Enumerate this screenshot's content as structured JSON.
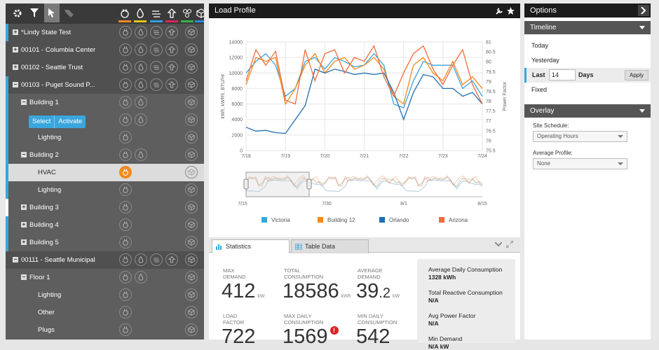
{
  "sidebar": {
    "toolbar_icons": [
      "gear-icon",
      "filter-icon",
      "pointer-icon",
      "tag-icon"
    ],
    "category_icons": [
      {
        "name": "electric-plug-icon",
        "color": "#f08a1e"
      },
      {
        "name": "gas-flame-icon",
        "color": "#e0c419"
      },
      {
        "name": "water-icon",
        "color": "#2ba0de"
      },
      {
        "name": "steam-icon",
        "color": "#d6265a"
      },
      {
        "name": "chilled-water-icon",
        "color": "#35b04a"
      },
      {
        "name": "cube-icon",
        "color": "#2a88d8"
      }
    ],
    "popup": {
      "select": "Select",
      "activate": "Activate"
    },
    "tree": [
      {
        "label": "*Lindy State Test",
        "level": 0,
        "expander": "+",
        "type": "site",
        "marker": "#3aa6dd"
      },
      {
        "label": "00101 - Columbia Center",
        "level": 0,
        "expander": "+",
        "type": "site"
      },
      {
        "label": "00102 - Seattle Trust",
        "level": 0,
        "expander": "+",
        "type": "site"
      },
      {
        "label": "00103 - Puget Sound P...",
        "level": 0,
        "expander": "−",
        "type": "site",
        "marker": "#3aa6dd"
      },
      {
        "label": "Building 1",
        "level": 1,
        "expander": "−",
        "type": "building",
        "marker": "#3aa6dd"
      },
      {
        "label": "",
        "level": 2,
        "expander": "",
        "type": "building",
        "marker": "#3aa6dd"
      },
      {
        "label": "Lighting",
        "level": 2,
        "expander": "",
        "type": "building",
        "marker": "#3aa6dd"
      },
      {
        "label": "Building 2",
        "level": 1,
        "expander": "−",
        "type": "building",
        "marker": "#3aa6dd"
      },
      {
        "label": "HVAC",
        "level": 2,
        "expander": "",
        "type": "selected",
        "marker": "#3aa6dd"
      },
      {
        "label": "Lighting",
        "level": 2,
        "expander": "",
        "type": "building",
        "marker": "#3aa6dd"
      },
      {
        "label": "Building 3",
        "level": 1,
        "expander": "+",
        "type": "building",
        "marker": "#ffffff"
      },
      {
        "label": "Building 4",
        "level": 1,
        "expander": "+",
        "type": "building",
        "marker": "#3aa6dd"
      },
      {
        "label": "Building 5",
        "level": 1,
        "expander": "+",
        "type": "building",
        "marker": "#3aa6dd"
      },
      {
        "label": "00111 - Seattle Municipal",
        "level": 0,
        "expander": "−",
        "type": "site"
      },
      {
        "label": "Floor 1",
        "level": 1,
        "expander": "−",
        "type": "building"
      },
      {
        "label": "Lighting",
        "level": 2,
        "expander": "",
        "type": "building"
      },
      {
        "label": "Other",
        "level": 2,
        "expander": "",
        "type": "building"
      },
      {
        "label": "Plugs",
        "level": 2,
        "expander": "",
        "type": "building"
      }
    ]
  },
  "load_profile": {
    "title": "Load Profile",
    "tabs": {
      "statistics": "Statistics",
      "table": "Table Data"
    },
    "stats": [
      {
        "label1": "MAX",
        "label2": "DEMAND",
        "value": "412",
        "unit": "kW"
      },
      {
        "label1": "TOTAL",
        "label2": "CONSUMPTION",
        "value": "18586",
        "unit": "kWh"
      },
      {
        "label1": "AVERAGE",
        "label2": "DEMAND",
        "value": "39",
        "decimal": ".2",
        "unit": "kW"
      },
      {
        "label1": "LOAD",
        "label2": "FACTOR",
        "value": "722"
      },
      {
        "label1": "MAX DAILY",
        "label2": "CONSUMPTION",
        "value": "1569"
      },
      {
        "label1": "MIN DAILY",
        "label2": "CONSUMPTION",
        "value": "542"
      }
    ],
    "summary": [
      {
        "label": "Average Daily Consumption",
        "value": "1328 kWh"
      },
      {
        "label": "Total Reactive Consumption",
        "value": "N/A"
      },
      {
        "label": "Avg Power Factor",
        "value": "N/A"
      },
      {
        "label": "Min Demand",
        "value": "N/A kW"
      }
    ]
  },
  "options": {
    "title": "Options",
    "timeline": {
      "header": "Timeline",
      "today": "Today",
      "yesterday": "Yesterday",
      "last_label": "Last",
      "last_value": "14",
      "days": "Days",
      "apply": "Apply",
      "fixed": "Fixed"
    },
    "overlay": {
      "header": "Overlay",
      "site_schedule_label": "Site Schedule:",
      "site_schedule_value": "Operating Hours",
      "avg_profile_label": "Average Profile:",
      "avg_profile_value": "None"
    }
  },
  "chart_data": {
    "type": "line",
    "ylabel": "kWh, kWRh, BTU/Hr",
    "y2label": "Power Factor",
    "x_ticks": [
      "7/18",
      "7/19",
      "7/20",
      "7/21",
      "7/22",
      "7/23",
      "7/24"
    ],
    "y_ticks": [
      "0",
      "2000",
      "4000",
      "6000",
      "8000",
      "10000",
      "12000",
      "14000"
    ],
    "y2_ticks": [
      "75.5",
      "76",
      "76.5",
      "77",
      "77.5",
      "78",
      "78.5",
      "79",
      "79.5",
      "80",
      "80.5",
      "81"
    ],
    "ylim": [
      0,
      14000
    ],
    "x": [
      0,
      0.25,
      0.5,
      0.75,
      1,
      1.25,
      1.5,
      1.75,
      2,
      2.25,
      2.5,
      2.75,
      3,
      3.25,
      3.5,
      3.75,
      4,
      4.25,
      4.5,
      4.75,
      5,
      5.25,
      5.5,
      5.75,
      6
    ],
    "series": [
      {
        "name": "Victoria",
        "color": "#3aa6dd",
        "values": [
          10000,
          11500,
          12500,
          11000,
          7000,
          8000,
          11500,
          12000,
          10500,
          12000,
          11500,
          10800,
          11000,
          12500,
          11000,
          6000,
          5500,
          9000,
          11500,
          11000,
          11000,
          11000,
          8000,
          9000,
          7000
        ]
      },
      {
        "name": "Building 12",
        "color": "#f08a1e",
        "values": [
          8500,
          12000,
          11500,
          12000,
          6000,
          8000,
          11000,
          12500,
          10000,
          11500,
          12000,
          10500,
          11000,
          12000,
          10500,
          7000,
          6000,
          11000,
          12000,
          10000,
          9000,
          11500,
          8500,
          9500,
          8000
        ]
      },
      {
        "name": "Orlando",
        "color": "#1f6fb3",
        "values": [
          3000,
          2500,
          2600,
          2300,
          2200,
          4000,
          5800,
          10500,
          10000,
          10500,
          10200,
          9800,
          10000,
          9800,
          10000,
          7500,
          4000,
          7500,
          9800,
          9500,
          8000,
          8000,
          7000,
          7500,
          6000
        ]
      },
      {
        "name": "Arizona",
        "color": "#f26b3a",
        "values": [
          9000,
          13000,
          11000,
          12800,
          6500,
          6000,
          13000,
          9000,
          12500,
          13000,
          10000,
          12000,
          11500,
          13500,
          9500,
          7000,
          10000,
          12500,
          13500,
          10500,
          8500,
          11000,
          13000,
          8500,
          6000
        ]
      }
    ],
    "nav_ticks": [
      "7/15",
      "7/30",
      "8/1",
      "8/15"
    ]
  }
}
